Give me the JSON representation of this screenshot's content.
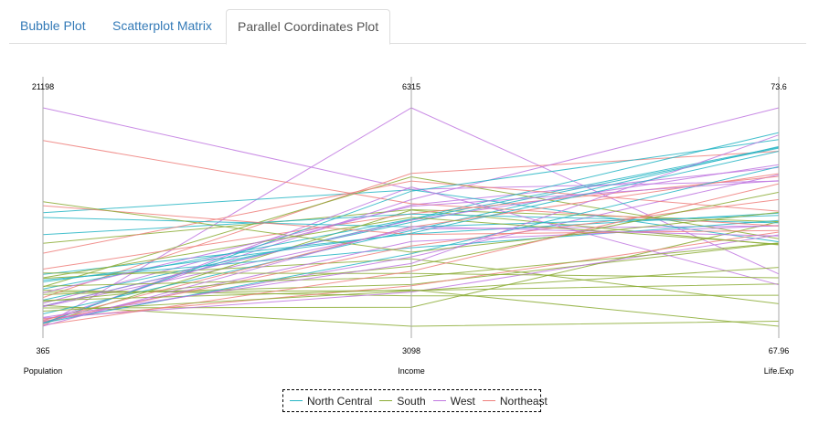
{
  "tabs": [
    {
      "label": "Bubble Plot",
      "active": false
    },
    {
      "label": "Scatterplot Matrix",
      "active": false
    },
    {
      "label": "Parallel Coordinates Plot",
      "active": true
    }
  ],
  "chart_data": {
    "type": "parallel-coordinates",
    "title": "",
    "dimensions": [
      {
        "name": "Population",
        "min": 365,
        "max": 21198
      },
      {
        "name": "Income",
        "min": 3098,
        "max": 6315
      },
      {
        "name": "Life.Exp",
        "min": 67.96,
        "max": 73.6
      }
    ],
    "tick_labels": {
      "Population": {
        "max": "21198",
        "min": "365"
      },
      "Income": {
        "max": "6315",
        "min": "3098"
      },
      "Life.Exp": {
        "max": "73.6",
        "min": "67.96"
      }
    },
    "colors": {
      "North Central": "#26b5c4",
      "South": "#8bab34",
      "West": "#c077e0",
      "Northeast": "#ef7f7b"
    },
    "legend": [
      "North Central",
      "South",
      "West",
      "Northeast"
    ],
    "legend_position": "bottom-center",
    "series": [
      {
        "region": "South",
        "values": [
          3615,
          3624,
          69.05
        ]
      },
      {
        "region": "West",
        "values": [
          365,
          6315,
          69.31
        ]
      },
      {
        "region": "West",
        "values": [
          2212,
          4530,
          70.55
        ]
      },
      {
        "region": "South",
        "values": [
          2110,
          3378,
          70.66
        ]
      },
      {
        "region": "West",
        "values": [
          21198,
          5114,
          71.71
        ]
      },
      {
        "region": "West",
        "values": [
          2541,
          4884,
          72.06
        ]
      },
      {
        "region": "Northeast",
        "values": [
          3100,
          5348,
          72.48
        ]
      },
      {
        "region": "South",
        "values": [
          579,
          4809,
          70.06
        ]
      },
      {
        "region": "South",
        "values": [
          8277,
          4815,
          70.66
        ]
      },
      {
        "region": "South",
        "values": [
          4931,
          4091,
          68.54
        ]
      },
      {
        "region": "West",
        "values": [
          868,
          4963,
          73.6
        ]
      },
      {
        "region": "West",
        "values": [
          813,
          4119,
          71.87
        ]
      },
      {
        "region": "North Central",
        "values": [
          11197,
          5107,
          70.14
        ]
      },
      {
        "region": "North Central",
        "values": [
          5313,
          4458,
          70.88
        ]
      },
      {
        "region": "North Central",
        "values": [
          2861,
          4628,
          72.56
        ]
      },
      {
        "region": "North Central",
        "values": [
          2280,
          4669,
          72.58
        ]
      },
      {
        "region": "South",
        "values": [
          3387,
          3712,
          70.1
        ]
      },
      {
        "region": "South",
        "values": [
          3806,
          3545,
          68.76
        ]
      },
      {
        "region": "Northeast",
        "values": [
          1058,
          3694,
          70.39
        ]
      },
      {
        "region": "South",
        "values": [
          4122,
          5299,
          70.22
        ]
      },
      {
        "region": "Northeast",
        "values": [
          5814,
          4755,
          71.83
        ]
      },
      {
        "region": "North Central",
        "values": [
          9111,
          4751,
          70.63
        ]
      },
      {
        "region": "North Central",
        "values": [
          3921,
          4675,
          72.96
        ]
      },
      {
        "region": "South",
        "values": [
          2341,
          3098,
          68.09
        ]
      },
      {
        "region": "North Central",
        "values": [
          4767,
          4254,
          70.69
        ]
      },
      {
        "region": "West",
        "values": [
          746,
          4347,
          70.56
        ]
      },
      {
        "region": "North Central",
        "values": [
          1544,
          4508,
          72.6
        ]
      },
      {
        "region": "West",
        "values": [
          590,
          5149,
          69.03
        ]
      },
      {
        "region": "Northeast",
        "values": [
          812,
          4281,
          71.23
        ]
      },
      {
        "region": "Northeast",
        "values": [
          7333,
          5237,
          70.93
        ]
      },
      {
        "region": "West",
        "values": [
          1144,
          3601,
          70.32
        ]
      },
      {
        "region": "Northeast",
        "values": [
          18076,
          4903,
          70.55
        ]
      },
      {
        "region": "South",
        "values": [
          5441,
          3875,
          69.21
        ]
      },
      {
        "region": "North Central",
        "values": [
          637,
          5087,
          72.78
        ]
      },
      {
        "region": "North Central",
        "values": [
          10735,
          4561,
          70.82
        ]
      },
      {
        "region": "South",
        "values": [
          2715,
          3983,
          71.42
        ]
      },
      {
        "region": "West",
        "values": [
          2284,
          4660,
          72.13
        ]
      },
      {
        "region": "Northeast",
        "values": [
          11860,
          4449,
          70.43
        ]
      },
      {
        "region": "Northeast",
        "values": [
          931,
          4558,
          71.9
        ]
      },
      {
        "region": "South",
        "values": [
          2816,
          3635,
          67.96
        ]
      },
      {
        "region": "North Central",
        "values": [
          681,
          4167,
          72.08
        ]
      },
      {
        "region": "South",
        "values": [
          4173,
          3821,
          70.11
        ]
      },
      {
        "region": "South",
        "values": [
          12237,
          4188,
          70.9
        ]
      },
      {
        "region": "West",
        "values": [
          1203,
          4022,
          72.9
        ]
      },
      {
        "region": "Northeast",
        "values": [
          472,
          3907,
          71.64
        ]
      },
      {
        "region": "South",
        "values": [
          4981,
          4701,
          70.08
        ]
      },
      {
        "region": "West",
        "values": [
          3559,
          4864,
          71.72
        ]
      },
      {
        "region": "South",
        "values": [
          1799,
          3617,
          69.48
        ]
      },
      {
        "region": "North Central",
        "values": [
          4589,
          4468,
          72.48
        ]
      },
      {
        "region": "West",
        "values": [
          376,
          4566,
          70.29
        ]
      }
    ]
  }
}
